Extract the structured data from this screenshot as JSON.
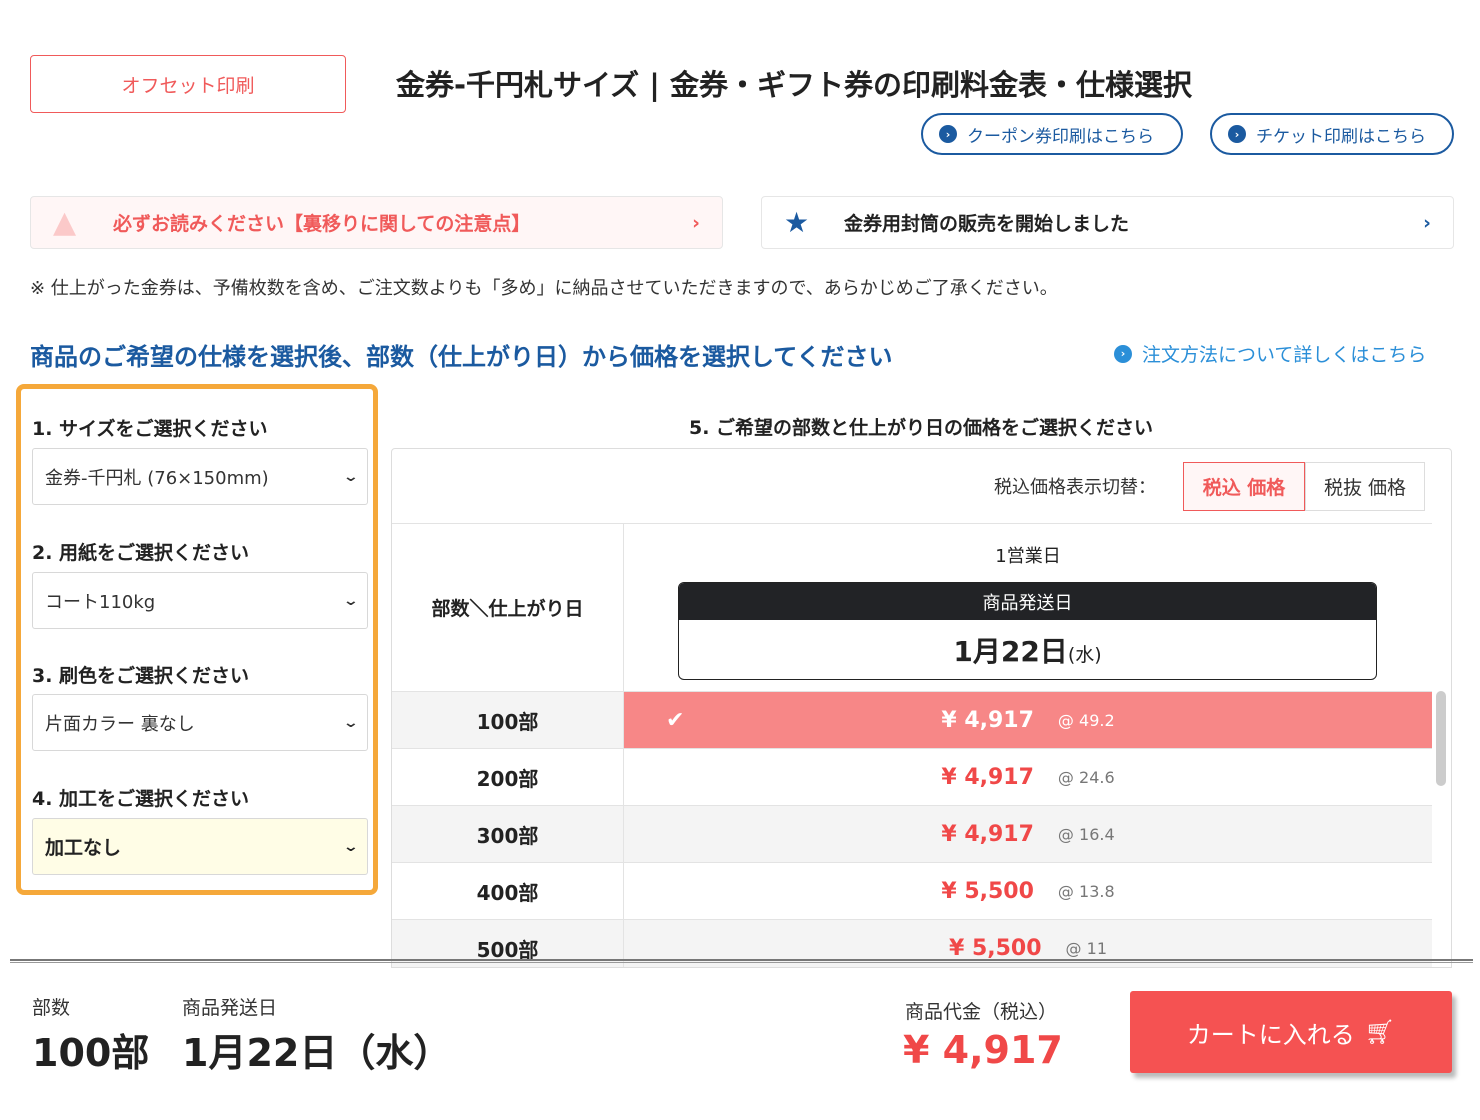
{
  "header": {
    "offset_button": "オフセット印刷",
    "title": "金券-千円札サイズ | 金券・ギフト券の印刷料金表・仕様選択",
    "coupon_link": "クーポン券印刷はこちら",
    "ticket_link": "チケット印刷はこちら"
  },
  "notices": {
    "warning": "必ずお読みください【裏移りに関しての注意点】",
    "envelope": "金券用封筒の販売を開始しました",
    "note": "※ 仕上がった金券は、予備枚数を含め、ご注文数よりも「多め」に納品させていただきますので、あらかじめご了承ください。"
  },
  "section": {
    "heading": "商品のご希望の仕様を選択後、部数（仕上がり日）から価格を選択してください",
    "howto_link": "注文方法について詳しくはこちら"
  },
  "options": [
    {
      "label": "1. サイズをご選択ください",
      "value": "金券-千円札 (76×150mm)"
    },
    {
      "label": "2. 用紙をご選択ください",
      "value": "コート110kg"
    },
    {
      "label": "3. 刷色をご選択ください",
      "value": "片面カラー 裏なし"
    },
    {
      "label": "4. 加工をご選択ください",
      "value": "加工なし"
    }
  ],
  "price_table": {
    "heading": "5. ご希望の部数と仕上がり日の価格をご選択ください",
    "toggle_label": "税込価格表示切替：",
    "tax_in": "税込 価格",
    "tax_out": "税抜 価格",
    "corner": "部数＼仕上がり日",
    "day": "1営業日",
    "ship_label": "商品発送日",
    "ship_date": "1月22日",
    "ship_dow": "(水)",
    "rows": [
      {
        "qty": "100部",
        "price": "¥ 4,917",
        "unit": "@ 49.2",
        "selected": true
      },
      {
        "qty": "200部",
        "price": "¥ 4,917",
        "unit": "@ 24.6"
      },
      {
        "qty": "300部",
        "price": "¥ 4,917",
        "unit": "@ 16.4"
      },
      {
        "qty": "400部",
        "price": "¥ 5,500",
        "unit": "@ 13.8"
      },
      {
        "qty": "500部",
        "price": "¥ 5,500",
        "unit": "@ 11"
      }
    ]
  },
  "summary": {
    "qty_label": "部数",
    "qty": "100部",
    "ship_label": "商品発送日",
    "ship": "1月22日（水）",
    "total_label": "商品代金（税込）",
    "total": "¥ 4,917",
    "cart_button": "カートに入れる"
  },
  "colors": {
    "accent": "#f05a5a",
    "brand": "#1b5aa0",
    "highlight": "#f5a83a",
    "selected_row": "#f78787"
  }
}
